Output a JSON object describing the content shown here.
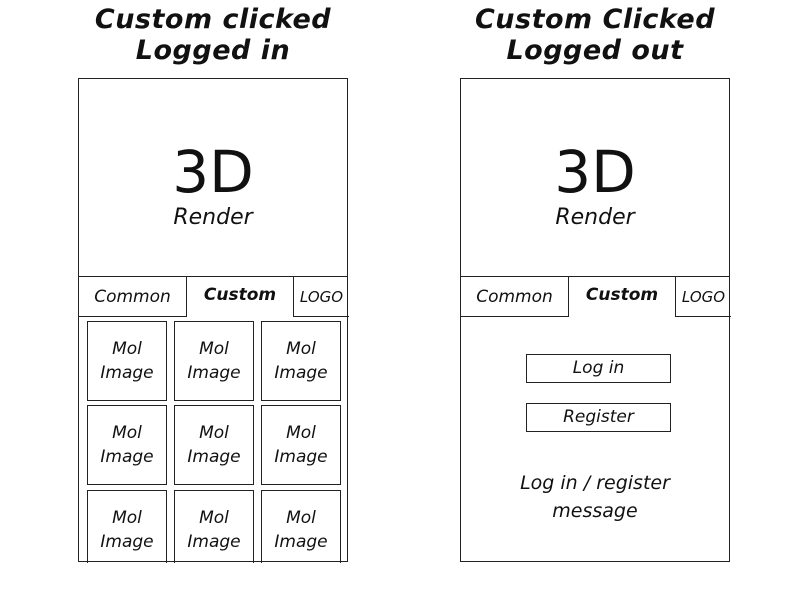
{
  "left_panel": {
    "heading_line1": "Custom clicked",
    "heading_line2": "Logged in",
    "render_big": "3D",
    "render_small": "Render",
    "tabs": {
      "common": "Common",
      "custom": "Custom",
      "logo": "LOGO"
    },
    "tiles": [
      {
        "line1": "Mol",
        "line2": "Image"
      },
      {
        "line1": "Mol",
        "line2": "Image"
      },
      {
        "line1": "Mol",
        "line2": "Image"
      },
      {
        "line1": "Mol",
        "line2": "Image"
      },
      {
        "line1": "Mol",
        "line2": "Image"
      },
      {
        "line1": "Mol",
        "line2": "Image"
      },
      {
        "line1": "Mol",
        "line2": "Image"
      },
      {
        "line1": "Mol",
        "line2": "Image"
      },
      {
        "line1": "Mol",
        "line2": "Image"
      }
    ]
  },
  "right_panel": {
    "heading_line1": "Custom Clicked",
    "heading_line2": "Logged out",
    "render_big": "3D",
    "render_small": "Render",
    "tabs": {
      "common": "Common",
      "custom": "Custom",
      "logo": "LOGO"
    },
    "login_button": "Log in",
    "register_button": "Register",
    "message_line1": "Log in / register",
    "message_line2": "message"
  }
}
